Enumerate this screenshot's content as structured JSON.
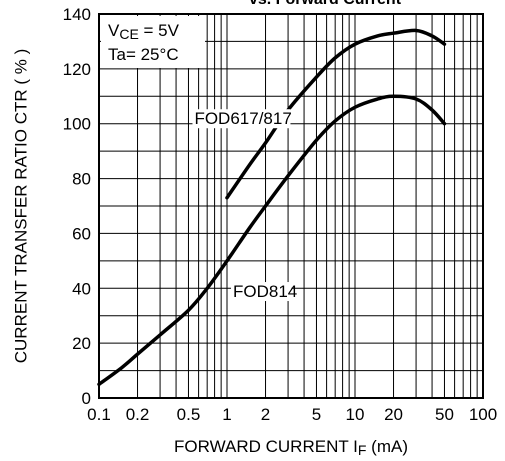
{
  "chart_data": {
    "type": "line",
    "title": "vs. Forward Current",
    "xlabel": "FORWARD CURRENT I",
    "xlabel_sub": "F",
    "xlabel_unit": " (mA)",
    "ylabel": "CURRENT TRANSFER RATIO CTR ( % )",
    "x_scale": "log",
    "xlim": [
      0.1,
      100
    ],
    "ylim": [
      0,
      140
    ],
    "grid": true,
    "x_ticks": [
      0.1,
      0.2,
      0.5,
      1,
      2,
      5,
      10,
      20,
      50,
      100
    ],
    "x_tick_labels": [
      "0.1",
      "0.2",
      "0.5",
      "1",
      "2",
      "5",
      "10",
      "20",
      "50",
      "100"
    ],
    "y_ticks": [
      0,
      20,
      40,
      60,
      80,
      100,
      120,
      140
    ],
    "y_tick_labels": [
      "0",
      "20",
      "40",
      "60",
      "80",
      "100",
      "120",
      "140"
    ],
    "conditions": {
      "vce_prefix": "V",
      "vce_sub": "CE",
      "vce_value": " = 5V",
      "ta": "Ta= 25°C"
    },
    "series": [
      {
        "name": "FOD617/817",
        "x": [
          1,
          1.5,
          2,
          3,
          5,
          7,
          10,
          15,
          20,
          30,
          40,
          50
        ],
        "y": [
          73,
          85,
          93,
          105,
          117,
          124,
          129,
          132,
          133,
          134,
          132,
          129
        ]
      },
      {
        "name": "FOD814",
        "x": [
          0.1,
          0.15,
          0.2,
          0.3,
          0.5,
          0.7,
          1,
          1.5,
          2,
          3,
          5,
          7,
          10,
          15,
          20,
          30,
          40,
          50
        ],
        "y": [
          5,
          11,
          16,
          23,
          32,
          40,
          50,
          62,
          70,
          81,
          94,
          101,
          106,
          109,
          110,
          109,
          105,
          100
        ]
      }
    ]
  }
}
